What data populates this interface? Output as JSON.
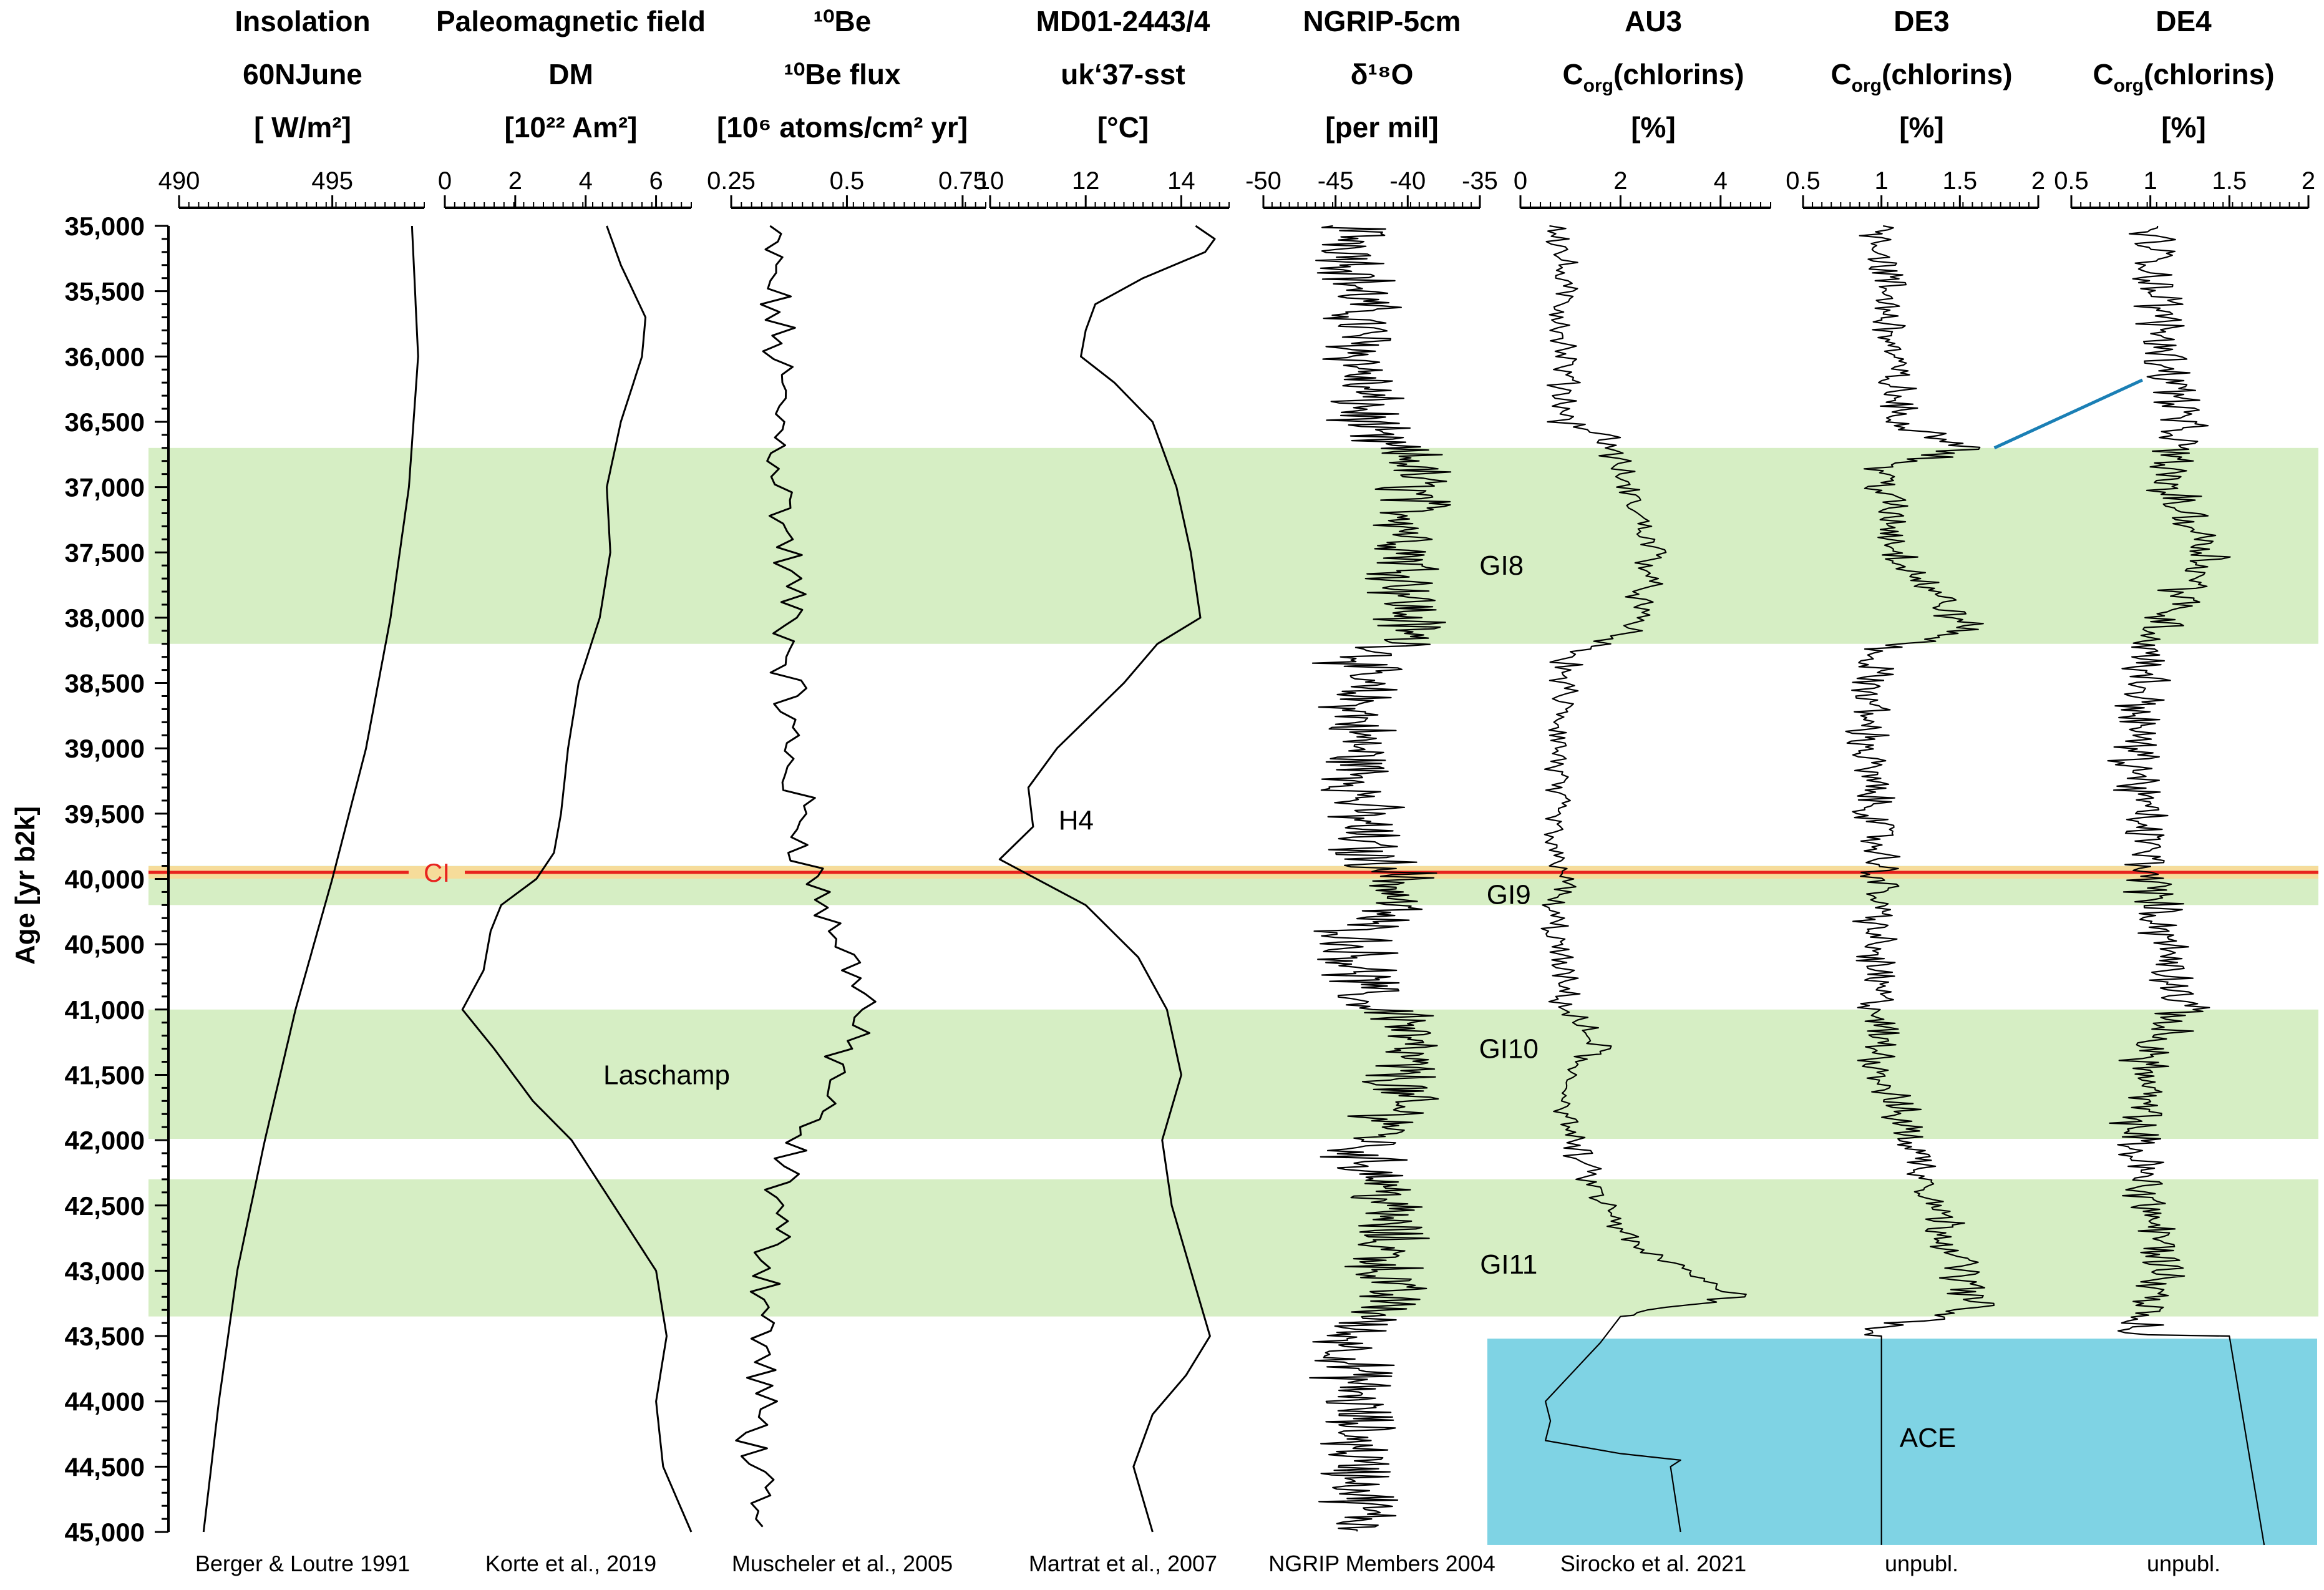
{
  "chart_data": {
    "type": "line",
    "y_axis": {
      "label": "Age [yr b2k]",
      "ylim": [
        35000,
        45000
      ],
      "ticks": [
        35000,
        35500,
        36000,
        36500,
        37000,
        37500,
        38000,
        38500,
        39000,
        39500,
        40000,
        40500,
        41000,
        41500,
        42000,
        42500,
        43000,
        43500,
        44000,
        44500,
        45000
      ],
      "tick_labels": [
        "35,000",
        "35,500",
        "36,000",
        "36,500",
        "37,000",
        "37,500",
        "38,000",
        "38,500",
        "39,000",
        "39,500",
        "40,000",
        "40,500",
        "41,000",
        "41,500",
        "42,000",
        "42,500",
        "43,000",
        "43,500",
        "44,000",
        "44,500",
        "45,000"
      ],
      "direction": "down"
    },
    "shaded_intervals": [
      {
        "label": "GI8",
        "from": 36700,
        "to": 38200,
        "color": "#d6eec4"
      },
      {
        "label": "GI9",
        "from": 39900,
        "to": 40200,
        "color": "#d6eec4"
      },
      {
        "label": "GI10",
        "from": 41000,
        "to": 41990,
        "color": "#d6eec4"
      },
      {
        "label": "GI11",
        "from": 42300,
        "to": 43350,
        "color": "#d6eec4"
      }
    ],
    "event_line": {
      "label": "CI",
      "age": 39950,
      "color": "#e8231e"
    },
    "ace_box": {
      "label": "ACE",
      "from": 43520,
      "to": 45100,
      "color": "#7fd3e4"
    },
    "panels": [
      {
        "id": "insolation",
        "title": [
          "Insolation",
          "60NJune",
          "[ W/m²]"
        ],
        "xlim": [
          490,
          498
        ],
        "ticks": [
          490,
          495
        ],
        "tick_labels": [
          "490",
          "495"
        ],
        "source": "Berger & Loutre 1991",
        "style": "smooth",
        "points": [
          [
            35000,
            497.6
          ],
          [
            36000,
            497.8
          ],
          [
            37000,
            497.5
          ],
          [
            38000,
            496.9
          ],
          [
            39000,
            496.1
          ],
          [
            40000,
            495.0
          ],
          [
            41000,
            493.8
          ],
          [
            42000,
            492.8
          ],
          [
            43000,
            491.9
          ],
          [
            44000,
            491.3
          ],
          [
            45000,
            490.8
          ]
        ]
      },
      {
        "id": "dm",
        "title": [
          "Paleomagnetic field",
          "DM",
          "[10²² Am²]"
        ],
        "xlim": [
          0,
          7
        ],
        "ticks": [
          0,
          2,
          4,
          6
        ],
        "tick_labels": [
          "0",
          "2",
          "4",
          "6"
        ],
        "source": "Korte et al., 2019",
        "annotation": {
          "text": "Laschamp",
          "age": 41500,
          "value": 6.3
        },
        "style": "smooth",
        "points": [
          [
            35000,
            4.6
          ],
          [
            35300,
            5.0
          ],
          [
            35700,
            5.7
          ],
          [
            36000,
            5.6
          ],
          [
            36500,
            5.0
          ],
          [
            37000,
            4.6
          ],
          [
            37500,
            4.7
          ],
          [
            38000,
            4.4
          ],
          [
            38500,
            3.8
          ],
          [
            39000,
            3.5
          ],
          [
            39500,
            3.3
          ],
          [
            39800,
            3.1
          ],
          [
            40000,
            2.6
          ],
          [
            40200,
            1.6
          ],
          [
            40400,
            1.3
          ],
          [
            40700,
            1.1
          ],
          [
            41000,
            0.5
          ],
          [
            41300,
            1.4
          ],
          [
            41700,
            2.5
          ],
          [
            42000,
            3.6
          ],
          [
            42500,
            4.8
          ],
          [
            43000,
            6.0
          ],
          [
            43500,
            6.3
          ],
          [
            44000,
            6.0
          ],
          [
            44500,
            6.2
          ],
          [
            45000,
            7.0
          ]
        ]
      },
      {
        "id": "be10",
        "title": [
          "¹⁰Be",
          "¹⁰Be flux",
          "[10⁶ atoms/cm² yr]"
        ],
        "xlim": [
          0.25,
          0.8
        ],
        "ticks": [
          0.25,
          0.5,
          0.75
        ],
        "tick_labels": [
          "0.25",
          "0.5",
          "0.75"
        ],
        "source": "Muscheler et al., 2005",
        "style": "jagged",
        "base": [
          [
            35000,
            0.33
          ],
          [
            36000,
            0.35
          ],
          [
            37000,
            0.36
          ],
          [
            38000,
            0.38
          ],
          [
            39000,
            0.37
          ],
          [
            39900,
            0.42
          ],
          [
            40400,
            0.47
          ],
          [
            40900,
            0.55
          ],
          [
            41200,
            0.5
          ],
          [
            41600,
            0.47
          ],
          [
            42000,
            0.38
          ],
          [
            42500,
            0.35
          ],
          [
            43500,
            0.32
          ],
          [
            44500,
            0.3
          ],
          [
            45000,
            0.29
          ]
        ],
        "amp": 0.035,
        "step": 60
      },
      {
        "id": "sst",
        "title": [
          "MD01-2443/4",
          "uk‘37-sst",
          "[°C]"
        ],
        "xlim": [
          10,
          15
        ],
        "ticks": [
          10,
          12,
          14
        ],
        "tick_labels": [
          "10",
          "12",
          "14"
        ],
        "source": "Martrat et al., 2007",
        "annotation": {
          "text": "H4",
          "age": 39550,
          "value": 11.8
        },
        "style": "polyline",
        "points": [
          [
            35000,
            14.3
          ],
          [
            35100,
            14.7
          ],
          [
            35200,
            14.5
          ],
          [
            35400,
            13.2
          ],
          [
            35600,
            12.2
          ],
          [
            35800,
            12.0
          ],
          [
            36000,
            11.9
          ],
          [
            36200,
            12.6
          ],
          [
            36500,
            13.4
          ],
          [
            36700,
            13.6
          ],
          [
            37000,
            13.9
          ],
          [
            37500,
            14.2
          ],
          [
            38000,
            14.4
          ],
          [
            38200,
            13.5
          ],
          [
            38500,
            12.8
          ],
          [
            39000,
            11.4
          ],
          [
            39300,
            10.8
          ],
          [
            39600,
            10.9
          ],
          [
            39850,
            10.2
          ],
          [
            40200,
            12.0
          ],
          [
            40600,
            13.1
          ],
          [
            41000,
            13.7
          ],
          [
            41500,
            14.0
          ],
          [
            42000,
            13.6
          ],
          [
            42500,
            13.8
          ],
          [
            43000,
            14.2
          ],
          [
            43500,
            14.6
          ],
          [
            43800,
            14.1
          ],
          [
            44100,
            13.4
          ],
          [
            44500,
            13.0
          ],
          [
            45000,
            13.4
          ]
        ]
      },
      {
        "id": "ngrip",
        "title": [
          "NGRIP-5cm",
          "δ¹⁸O",
          "[per mil]"
        ],
        "xlim": [
          -50,
          -35
        ],
        "ticks": [
          -50,
          -45,
          -40,
          -35
        ],
        "tick_labels": [
          "-50",
          "-45",
          "-40",
          "-35"
        ],
        "source": "NGRIP Members 2004",
        "annotations": [
          {
            "text": "GI8",
            "age": 37600,
            "value": -33.5
          },
          {
            "text": "GI9",
            "age": 40120,
            "value": -33.0
          },
          {
            "text": "GI10",
            "age": 41300,
            "value": -33.0
          },
          {
            "text": "GI11",
            "age": 42950,
            "value": -33.0
          }
        ],
        "style": "noise",
        "base": [
          [
            35000,
            -43.5
          ],
          [
            36600,
            -43.0
          ],
          [
            36800,
            -39.5
          ],
          [
            38200,
            -40.0
          ],
          [
            38350,
            -43.5
          ],
          [
            39800,
            -43.2
          ],
          [
            39950,
            -40.5
          ],
          [
            40200,
            -41.0
          ],
          [
            40400,
            -43.5
          ],
          [
            40950,
            -43.2
          ],
          [
            41050,
            -40.0
          ],
          [
            41900,
            -41.0
          ],
          [
            42100,
            -43.5
          ],
          [
            42300,
            -41.5
          ],
          [
            43300,
            -41.5
          ],
          [
            43450,
            -44.0
          ],
          [
            45000,
            -43.0
          ]
        ],
        "amp": 2.2,
        "step": 12
      },
      {
        "id": "au3",
        "title": [
          "AU3",
          "Corg(chlorins)",
          "[%]"
        ],
        "xlim": [
          0,
          5
        ],
        "ticks": [
          0,
          2,
          4
        ],
        "tick_labels": [
          "0",
          "2",
          "4"
        ],
        "source": "Sirocko et al. 2021",
        "style": "noise",
        "base": [
          [
            35000,
            0.8
          ],
          [
            36500,
            0.9
          ],
          [
            36600,
            1.7
          ],
          [
            37000,
            2.1
          ],
          [
            37500,
            2.7
          ],
          [
            38100,
            2.2
          ],
          [
            38300,
            0.9
          ],
          [
            39800,
            0.6
          ],
          [
            39950,
            1.0
          ],
          [
            40200,
            0.6
          ],
          [
            41000,
            0.9
          ],
          [
            41300,
            1.6
          ],
          [
            41450,
            0.9
          ],
          [
            42000,
            1.0
          ],
          [
            42400,
            1.5
          ],
          [
            42800,
            2.2
          ],
          [
            43200,
            4.4
          ],
          [
            43350,
            2.0
          ]
        ],
        "amp": 0.25,
        "step": 20,
        "tail": [
          [
            43350,
            2.0
          ],
          [
            43550,
            1.6
          ],
          [
            44000,
            0.5
          ],
          [
            44150,
            0.6
          ],
          [
            44300,
            0.5
          ],
          [
            44400,
            2.0
          ],
          [
            44450,
            3.2
          ],
          [
            44500,
            3.0
          ],
          [
            45000,
            3.2
          ]
        ]
      },
      {
        "id": "de3",
        "title": [
          "DE3",
          "Corg(chlorins)",
          "[%]"
        ],
        "xlim": [
          0.5,
          2
        ],
        "ticks": [
          0.5,
          1,
          1.5,
          2
        ],
        "tick_labels": [
          "0.5",
          "1",
          "1.5",
          "2"
        ],
        "source": "unpubl.",
        "style": "noise",
        "base": [
          [
            35000,
            1.0
          ],
          [
            36500,
            1.1
          ],
          [
            36700,
            1.6
          ],
          [
            36850,
            1.0
          ],
          [
            37500,
            1.1
          ],
          [
            38100,
            1.55
          ],
          [
            38250,
            0.95
          ],
          [
            39000,
            0.9
          ],
          [
            39950,
            1.0
          ],
          [
            40500,
            0.95
          ],
          [
            41500,
            1.0
          ],
          [
            42300,
            1.3
          ],
          [
            43300,
            1.6
          ],
          [
            43450,
            0.9
          ],
          [
            43500,
            0.9
          ]
        ],
        "amp": 0.11,
        "step": 15,
        "tail": [
          [
            43500,
            1.0
          ],
          [
            45100,
            1.0
          ]
        ]
      },
      {
        "id": "de4",
        "title": [
          "DE4",
          "Corg(chlorins)",
          "[%]"
        ],
        "xlim": [
          0.5,
          2
        ],
        "ticks": [
          0.5,
          1,
          1.5,
          2
        ],
        "tick_labels": [
          "0.5",
          "1",
          "1.5",
          "2"
        ],
        "source": "unpubl.",
        "style": "noise",
        "base": [
          [
            35000,
            1.0
          ],
          [
            36000,
            1.1
          ],
          [
            36400,
            1.2
          ],
          [
            37000,
            1.1
          ],
          [
            37500,
            1.4
          ],
          [
            38200,
            1.0
          ],
          [
            39000,
            0.9
          ],
          [
            40000,
            1.0
          ],
          [
            40500,
            1.1
          ],
          [
            41000,
            1.2
          ],
          [
            41300,
            1.0
          ],
          [
            42000,
            0.9
          ],
          [
            43000,
            1.1
          ],
          [
            43500,
            0.9
          ]
        ],
        "amp": 0.13,
        "step": 15,
        "tail": [
          [
            43500,
            1.5
          ],
          [
            45100,
            1.72
          ]
        ]
      }
    ],
    "correlation_line": {
      "from": {
        "panel": "de3",
        "age": 36700,
        "value": 1.72
      },
      "to": {
        "panel": "de4",
        "age": 36180,
        "value": 0.95
      },
      "color": "#1a7fb5"
    }
  }
}
